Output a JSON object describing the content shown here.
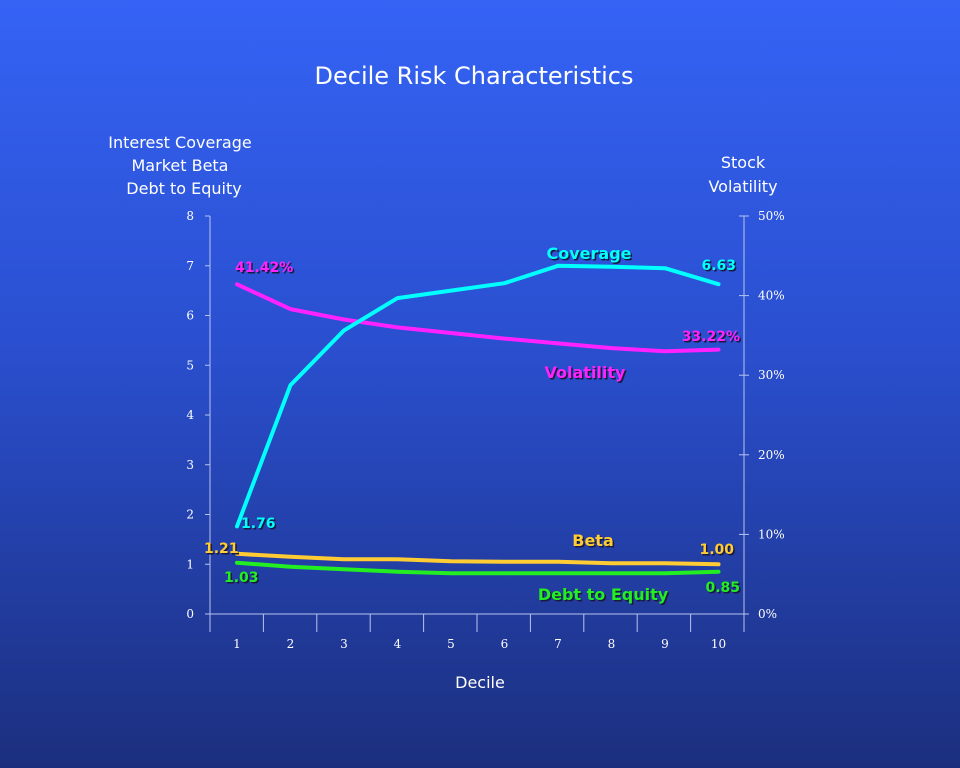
{
  "chart_data": {
    "type": "line",
    "title": "Decile Risk Characteristics",
    "xlabel": "Decile",
    "ylabel_left": [
      "Interest Coverage",
      "Market Beta",
      "Debt to Equity"
    ],
    "ylabel_right": [
      "Stock",
      "Volatility"
    ],
    "x": [
      1,
      2,
      3,
      4,
      5,
      6,
      7,
      8,
      9,
      10
    ],
    "ylim_left": [
      0,
      8
    ],
    "ylim_right": [
      0,
      50
    ],
    "y_left_ticks": [
      "0",
      "1",
      "2",
      "3",
      "4",
      "5",
      "6",
      "7",
      "8"
    ],
    "y_right_ticks": [
      "0%",
      "10%",
      "20%",
      "30%",
      "40%",
      "50%"
    ],
    "grid": false,
    "series": [
      {
        "name": "Coverage",
        "axis": "left",
        "color": "#00ffff",
        "values": [
          1.76,
          4.6,
          5.7,
          6.35,
          6.5,
          6.65,
          7.0,
          6.98,
          6.95,
          6.63
        ],
        "start_label": "1.76",
        "end_label": "6.63"
      },
      {
        "name": "Volatility",
        "axis": "right",
        "color": "#ff22ff",
        "values": [
          41.42,
          38.3,
          37.0,
          36.0,
          35.3,
          34.6,
          34.0,
          33.4,
          33.0,
          33.22
        ],
        "start_label": "41.42%",
        "end_label": "33.22%"
      },
      {
        "name": "Beta",
        "axis": "left",
        "color": "#ffcc33",
        "values": [
          1.21,
          1.15,
          1.1,
          1.1,
          1.06,
          1.05,
          1.05,
          1.02,
          1.02,
          1.0
        ],
        "start_label": "1.21",
        "end_label": "1.00"
      },
      {
        "name": "Debt to Equity",
        "axis": "left",
        "color": "#22ee22",
        "values": [
          1.03,
          0.95,
          0.9,
          0.85,
          0.82,
          0.82,
          0.82,
          0.82,
          0.82,
          0.85
        ],
        "start_label": "1.03",
        "end_label": "0.85"
      }
    ]
  }
}
